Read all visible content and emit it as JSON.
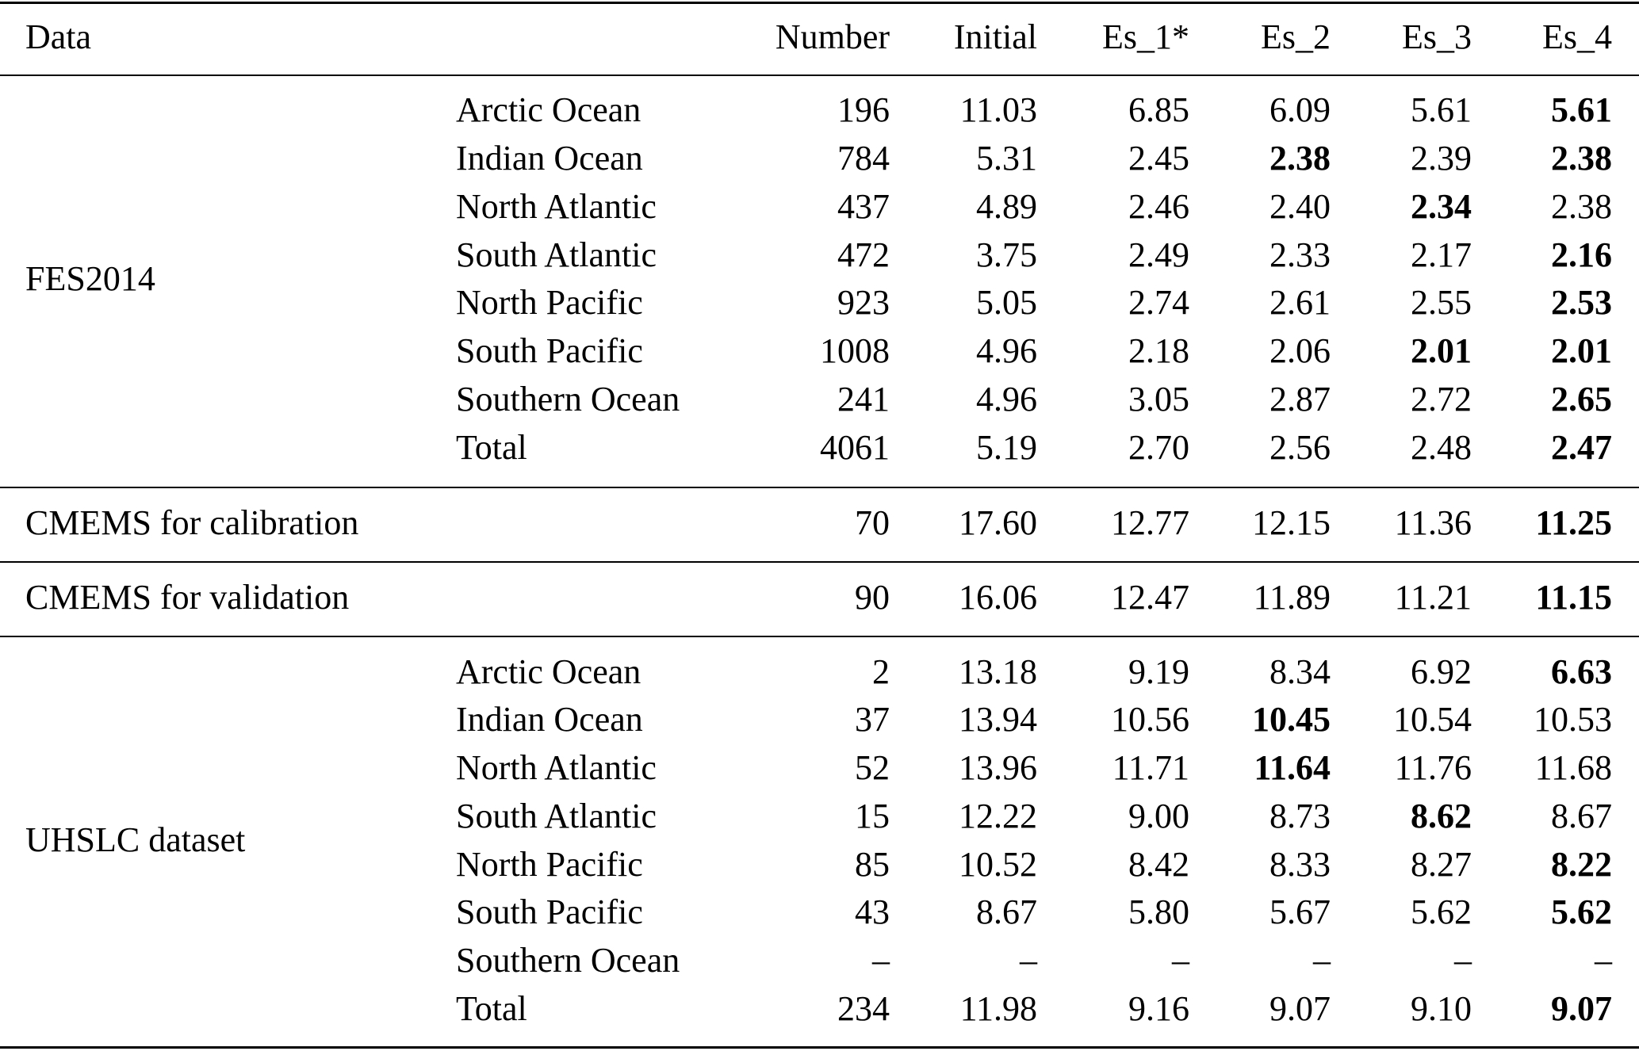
{
  "columns": {
    "data": "Data",
    "number": "Number",
    "initial": "Initial",
    "es1": "Es_1*",
    "es2": "Es_2",
    "es3": "Es_3",
    "es4": "Es_4"
  },
  "sections": [
    {
      "group": "FES2014",
      "rows": [
        {
          "region": "Arctic Ocean",
          "number": "196",
          "initial": "11.03",
          "es1": "6.85",
          "es2": "6.09",
          "es3": "5.61",
          "es4": "5.61",
          "bold": [
            "es4"
          ]
        },
        {
          "region": "Indian Ocean",
          "number": "784",
          "initial": "5.31",
          "es1": "2.45",
          "es2": "2.38",
          "es3": "2.39",
          "es4": "2.38",
          "bold": [
            "es2",
            "es4"
          ]
        },
        {
          "region": "North Atlantic",
          "number": "437",
          "initial": "4.89",
          "es1": "2.46",
          "es2": "2.40",
          "es3": "2.34",
          "es4": "2.38",
          "bold": [
            "es3"
          ]
        },
        {
          "region": "South Atlantic",
          "number": "472",
          "initial": "3.75",
          "es1": "2.49",
          "es2": "2.33",
          "es3": "2.17",
          "es4": "2.16",
          "bold": [
            "es4"
          ]
        },
        {
          "region": "North Pacific",
          "number": "923",
          "initial": "5.05",
          "es1": "2.74",
          "es2": "2.61",
          "es3": "2.55",
          "es4": "2.53",
          "bold": [
            "es4"
          ]
        },
        {
          "region": "South Pacific",
          "number": "1008",
          "initial": "4.96",
          "es1": "2.18",
          "es2": "2.06",
          "es3": "2.01",
          "es4": "2.01",
          "bold": [
            "es3",
            "es4"
          ]
        },
        {
          "region": "Southern Ocean",
          "number": "241",
          "initial": "4.96",
          "es1": "3.05",
          "es2": "2.87",
          "es3": "2.72",
          "es4": "2.65",
          "bold": [
            "es4"
          ]
        },
        {
          "region": "Total",
          "number": "4061",
          "initial": "5.19",
          "es1": "2.70",
          "es2": "2.56",
          "es3": "2.48",
          "es4": "2.47",
          "bold": [
            "es4"
          ]
        }
      ]
    },
    {
      "group": "CMEMS for calibration",
      "rows": [
        {
          "region": "",
          "number": "70",
          "initial": "17.60",
          "es1": "12.77",
          "es2": "12.15",
          "es3": "11.36",
          "es4": "11.25",
          "bold": [
            "es4"
          ]
        }
      ]
    },
    {
      "group": "CMEMS for validation",
      "rows": [
        {
          "region": "",
          "number": "90",
          "initial": "16.06",
          "es1": "12.47",
          "es2": "11.89",
          "es3": "11.21",
          "es4": "11.15",
          "bold": [
            "es4"
          ]
        }
      ]
    },
    {
      "group": "UHSLC dataset",
      "rows": [
        {
          "region": "Arctic Ocean",
          "number": "2",
          "initial": "13.18",
          "es1": "9.19",
          "es2": "8.34",
          "es3": "6.92",
          "es4": "6.63",
          "bold": [
            "es4"
          ]
        },
        {
          "region": "Indian Ocean",
          "number": "37",
          "initial": "13.94",
          "es1": "10.56",
          "es2": "10.45",
          "es3": "10.54",
          "es4": "10.53",
          "bold": [
            "es2"
          ]
        },
        {
          "region": "North Atlantic",
          "number": "52",
          "initial": "13.96",
          "es1": "11.71",
          "es2": "11.64",
          "es3": "11.76",
          "es4": "11.68",
          "bold": [
            "es2"
          ]
        },
        {
          "region": "South Atlantic",
          "number": "15",
          "initial": "12.22",
          "es1": "9.00",
          "es2": "8.73",
          "es3": "8.62",
          "es4": "8.67",
          "bold": [
            "es3"
          ]
        },
        {
          "region": "North Pacific",
          "number": "85",
          "initial": "10.52",
          "es1": "8.42",
          "es2": "8.33",
          "es3": "8.27",
          "es4": "8.22",
          "bold": [
            "es4"
          ]
        },
        {
          "region": "South Pacific",
          "number": "43",
          "initial": "8.67",
          "es1": "5.80",
          "es2": "5.67",
          "es3": "5.62",
          "es4": "5.62",
          "bold": [
            "es4"
          ]
        },
        {
          "region": "Southern Ocean",
          "number": "–",
          "initial": "–",
          "es1": "–",
          "es2": "–",
          "es3": "–",
          "es4": "–",
          "bold": []
        },
        {
          "region": "Total",
          "number": "234",
          "initial": "11.98",
          "es1": "9.16",
          "es2": "9.07",
          "es3": "9.10",
          "es4": "9.07",
          "bold": [
            "es4"
          ]
        }
      ]
    }
  ]
}
